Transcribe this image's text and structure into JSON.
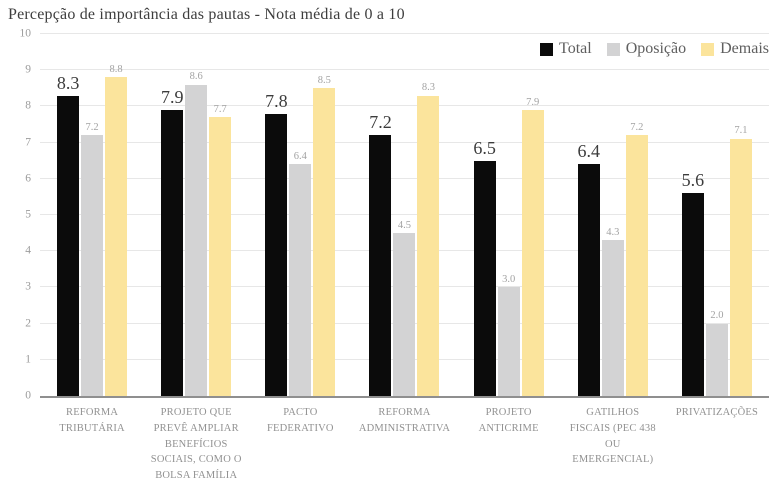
{
  "chart_data": {
    "type": "bar",
    "title": "Percepção de importância das pautas - Nota média de 0 a 10",
    "categories": [
      "REFORMA\nTRIBUTÁRIA",
      "PROJETO QUE\nPREVÊ AMPLIAR\nBENEFÍCIOS\nSOCIAIS, COMO O\nBOLSA FAMÍLIA",
      "PACTO\nFEDERATIVO",
      "REFORMA\nADMINISTRATIVA",
      "PROJETO\nANTICRIME",
      "GATILHOS\nFISCAIS (PEC 438\nOU\nEMERGENCIAL)",
      "PRIVATIZAÇÕES"
    ],
    "series": [
      {
        "name": "Total",
        "color": "#0b0b0b",
        "values": [
          8.3,
          7.9,
          7.8,
          7.2,
          6.5,
          6.4,
          5.6
        ],
        "value_labels": [
          "8.3",
          "7.9",
          "7.8",
          "7.2",
          "6.5",
          "6.4",
          "5.6"
        ],
        "label_style": "primary"
      },
      {
        "name": "Oposição",
        "color": "#d3d3d4",
        "values": [
          7.2,
          8.6,
          6.4,
          4.5,
          3.0,
          4.3,
          2.0
        ],
        "value_labels": [
          "7.2",
          "8.6",
          "6.4",
          "4.5",
          "3.0",
          "4.3",
          "2.0"
        ],
        "label_style": "secondary"
      },
      {
        "name": "Demais",
        "color": "#fbe49c",
        "values": [
          8.8,
          7.7,
          8.5,
          8.3,
          7.9,
          7.2,
          7.1
        ],
        "value_labels": [
          "8.8",
          "7.7",
          "8.5",
          "8.3",
          "7.9",
          "7.2",
          "7.1"
        ],
        "label_style": "secondary"
      }
    ],
    "xlabel": "",
    "ylabel": "",
    "ylim": [
      0,
      10
    ],
    "yticks": [
      0,
      1,
      2,
      3,
      4,
      5,
      6,
      7,
      8,
      9,
      10
    ],
    "grid": true,
    "legend_position": "top-right",
    "colors": {
      "grid": "#e7e7e7",
      "axis_line": "#8f8f8f",
      "tick_text": "#9c9c9c",
      "title_text": "#3d3d3d",
      "legend_text": "#5f5f5f"
    }
  }
}
